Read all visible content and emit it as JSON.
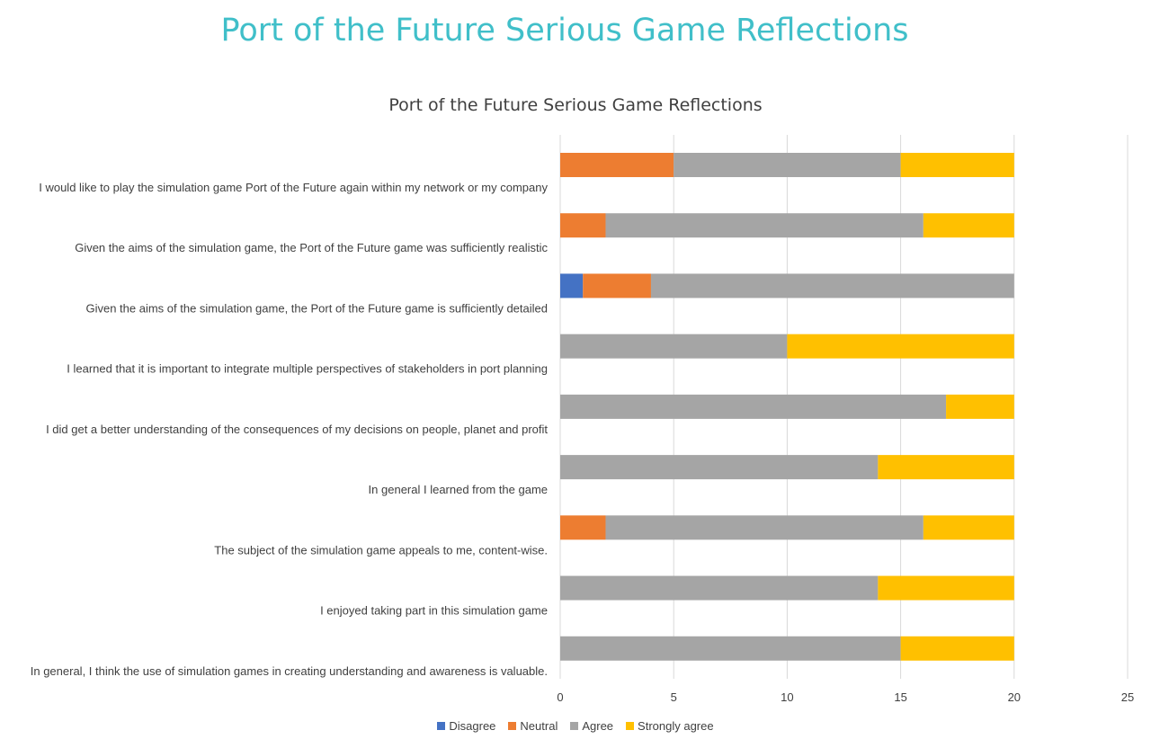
{
  "page_title": "Port of the Future Serious Game Reflections",
  "chart_data": {
    "type": "bar",
    "orientation": "horizontal",
    "stacked": true,
    "title": "Port of the Future Serious Game Reflections",
    "xlabel": "",
    "ylabel": "",
    "xlim": [
      0,
      25
    ],
    "xticks": [
      0,
      5,
      10,
      15,
      20,
      25
    ],
    "grid": true,
    "legend_position": "bottom",
    "categories": [
      "I would like to play the simulation game Port of the Future again within my network or my company",
      "Given the aims of the simulation game, the Port of the Future game was sufficiently realistic",
      "Given the aims of the simulation game, the Port of the Future game is sufficiently detailed",
      "I learned that it is important to integrate multiple perspectives of stakeholders in port planning",
      "I did get a better understanding of the consequences of my decisions on people, planet and profit",
      "In general I learned from the game",
      "The subject of the simulation game appeals to me, content-wise.",
      "I enjoyed taking part in this simulation game",
      "In general, I think the use of simulation games in creating understanding and awareness is valuable."
    ],
    "series": [
      {
        "name": "Disagree",
        "color": "#4472c4",
        "values": [
          0,
          0,
          1,
          0,
          0,
          0,
          0,
          0,
          0
        ]
      },
      {
        "name": "Neutral",
        "color": "#ed7d31",
        "values": [
          5,
          2,
          3,
          0,
          0,
          0,
          2,
          0,
          0
        ]
      },
      {
        "name": "Agree",
        "color": "#a5a5a5",
        "values": [
          10,
          14,
          16,
          10,
          17,
          14,
          14,
          14,
          15
        ]
      },
      {
        "name": "Strongly agree",
        "color": "#ffc000",
        "values": [
          5,
          4,
          0,
          10,
          3,
          6,
          4,
          6,
          5
        ]
      }
    ]
  }
}
